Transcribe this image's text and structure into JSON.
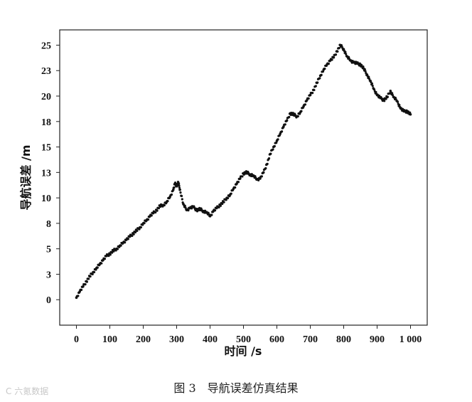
{
  "caption": "图 3　导航误差仿真结果",
  "watermark": "C 六氪数据",
  "chart_data": {
    "type": "scatter",
    "title": "",
    "xlabel": "时间 /s",
    "ylabel": "导航误差 /m",
    "xlim": [
      -50,
      1050
    ],
    "ylim": [
      -2.5,
      26.5
    ],
    "x_ticks": [
      0,
      100,
      200,
      300,
      400,
      500,
      600,
      700,
      800,
      900,
      1000
    ],
    "x_tick_labels": [
      "0",
      "100",
      "200",
      "300",
      "400",
      "500",
      "600",
      "700",
      "800",
      "900",
      "1 000"
    ],
    "y_ticks": [
      0,
      2.5,
      5,
      7.5,
      10,
      12.5,
      15,
      17.5,
      20,
      22.5,
      25
    ],
    "y_tick_labels": [
      "0",
      "3",
      "5",
      "8",
      "10",
      "13",
      "15",
      "18",
      "20",
      "23",
      "25"
    ],
    "grid": false,
    "series": [
      {
        "x": [
          0,
          10,
          20,
          30,
          40,
          50,
          60,
          70,
          80,
          90,
          100,
          110,
          120,
          130,
          140,
          150,
          160,
          170,
          180,
          190,
          200,
          210,
          220,
          230,
          240,
          250,
          260,
          270,
          280,
          290,
          295,
          300,
          305,
          310,
          320,
          330,
          340,
          350,
          360,
          370,
          380,
          390,
          400,
          410,
          420,
          430,
          440,
          450,
          460,
          470,
          480,
          490,
          500,
          510,
          520,
          530,
          540,
          550,
          560,
          570,
          580,
          590,
          600,
          610,
          620,
          630,
          640,
          650,
          660,
          670,
          680,
          690,
          700,
          710,
          720,
          730,
          740,
          750,
          760,
          770,
          780,
          790,
          800,
          810,
          820,
          830,
          840,
          850,
          860,
          870,
          880,
          890,
          900,
          910,
          920,
          930,
          940,
          950,
          960,
          970,
          980,
          990,
          1000
        ],
        "y": [
          0.2,
          0.8,
          1.3,
          1.8,
          2.3,
          2.7,
          3.1,
          3.5,
          3.9,
          4.3,
          4.5,
          4.8,
          5.0,
          5.3,
          5.6,
          5.9,
          6.2,
          6.5,
          6.8,
          7.1,
          7.5,
          7.8,
          8.2,
          8.5,
          8.8,
          9.2,
          9.3,
          9.6,
          10.1,
          10.8,
          11.4,
          11.2,
          11.5,
          10.8,
          9.4,
          8.8,
          9.0,
          9.1,
          8.8,
          8.9,
          8.7,
          8.6,
          8.2,
          8.7,
          9.0,
          9.3,
          9.6,
          10.0,
          10.3,
          10.9,
          11.4,
          11.9,
          12.4,
          12.5,
          12.3,
          12.2,
          11.8,
          11.9,
          12.5,
          13.3,
          14.3,
          15.0,
          15.6,
          16.3,
          17.0,
          17.6,
          18.3,
          18.2,
          18.0,
          18.4,
          19.0,
          19.6,
          20.1,
          20.6,
          21.3,
          22.0,
          22.6,
          23.1,
          23.5,
          23.8,
          24.4,
          25.0,
          24.6,
          23.9,
          23.5,
          23.3,
          23.2,
          23.1,
          22.7,
          22.1,
          21.5,
          20.7,
          20.1,
          19.8,
          19.6,
          19.9,
          20.5,
          19.9,
          19.5,
          18.8,
          18.5,
          18.5,
          18.2
        ]
      }
    ]
  }
}
